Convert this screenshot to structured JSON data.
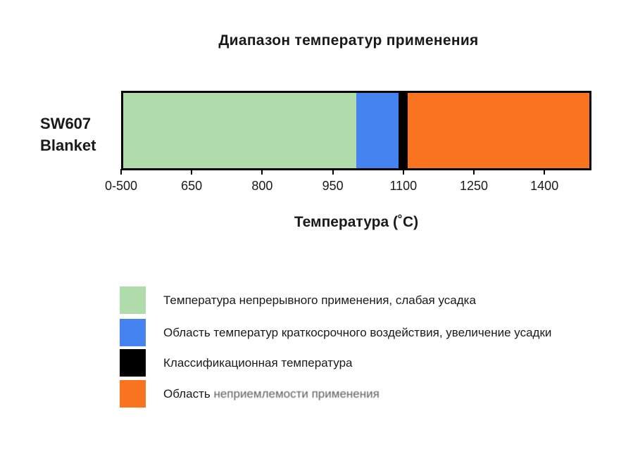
{
  "page": {
    "background_color": "#ffffff"
  },
  "chart_data": {
    "type": "bar",
    "orientation": "horizontal",
    "title": "Диапазон температур применения",
    "xlabel": "Температура (˚C)",
    "row_label_line1": "SW607",
    "row_label_line2": "Blanket",
    "xlim": [
      500,
      1500
    ],
    "grid": false,
    "legend_position": "bottom-left",
    "x_ticks": [
      {
        "label": "0-500",
        "value": 500
      },
      {
        "label": "650",
        "value": 650
      },
      {
        "label": "800",
        "value": 800
      },
      {
        "label": "950",
        "value": 950
      },
      {
        "label": "1100",
        "value": 1100
      },
      {
        "label": "1250",
        "value": 1250
      },
      {
        "label": "1400",
        "value": 1400
      }
    ],
    "segments": [
      {
        "id": "continuous-use",
        "name": "Температура непрерывного применения, слабая усадка",
        "start": 500,
        "end": 1000,
        "color": "#b0dcac"
      },
      {
        "id": "short-term-exposure",
        "name": "Область температур краткосрочного воздействия, увеличение усадки",
        "start": 1000,
        "end": 1090,
        "color": "#4583f0"
      },
      {
        "id": "classification-temperature",
        "name": "Классификационная температура",
        "start": 1090,
        "end": 1110,
        "color": "#000000"
      },
      {
        "id": "unacceptable-use",
        "name": "Область неприемлемости применения",
        "start": 1110,
        "end": 1500,
        "color": "#fa7420"
      }
    ],
    "classification_temperature": 1100
  },
  "legend": {
    "items": [
      {
        "label": "Температура непрерывного применения, слабая усадка",
        "color": "#b0dcac"
      },
      {
        "label": "Область температур краткосрочного воздействия, увеличение усадки",
        "color": "#4583f0"
      },
      {
        "label": "Классификационная температура",
        "color": "#000000"
      },
      {
        "label": "Область неприемлемости применения",
        "label_part1": "Область ",
        "label_part2": "неприемлемости применения",
        "color": "#fa7420"
      }
    ]
  }
}
